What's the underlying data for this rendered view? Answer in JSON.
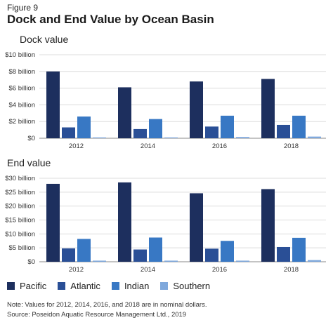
{
  "figure_label": "Figure 9",
  "title": "Dock and End Value by Ocean Basin",
  "legend": [
    {
      "name": "Pacific",
      "color": "#1d2f5e"
    },
    {
      "name": "Atlantic",
      "color": "#2a4f96"
    },
    {
      "name": "Indian",
      "color": "#3878c4"
    },
    {
      "name": "Southern",
      "color": "#7fa8dc"
    }
  ],
  "chart_data": [
    {
      "type": "bar",
      "title": "Dock value",
      "categories": [
        "2012",
        "2014",
        "2016",
        "2018"
      ],
      "yticks": [
        "$0",
        "$2 billion",
        "$4 billion",
        "$6 billion",
        "$8 billion",
        "$10 billion"
      ],
      "ylim": [
        0,
        10
      ],
      "series": [
        {
          "name": "Pacific",
          "values": [
            8.0,
            6.1,
            6.8,
            7.1
          ]
        },
        {
          "name": "Atlantic",
          "values": [
            1.3,
            1.1,
            1.4,
            1.6
          ]
        },
        {
          "name": "Indian",
          "values": [
            2.6,
            2.3,
            2.7,
            2.7
          ]
        },
        {
          "name": "Southern",
          "values": [
            0.1,
            0.1,
            0.15,
            0.2
          ]
        }
      ]
    },
    {
      "type": "bar",
      "title": "End value",
      "categories": [
        "2012",
        "2014",
        "2016",
        "2018"
      ],
      "yticks": [
        "$0",
        "$5 billion",
        "$10 billion",
        "$15 billion",
        "$20 billion",
        "$25 billion",
        "$30 billion"
      ],
      "ylim": [
        0,
        30
      ],
      "series": [
        {
          "name": "Pacific",
          "values": [
            28.0,
            28.5,
            24.6,
            26.1
          ]
        },
        {
          "name": "Atlantic",
          "values": [
            4.8,
            4.4,
            4.7,
            5.3
          ]
        },
        {
          "name": "Indian",
          "values": [
            8.2,
            8.7,
            7.5,
            8.6
          ]
        },
        {
          "name": "Southern",
          "values": [
            0.4,
            0.4,
            0.4,
            0.6
          ]
        }
      ]
    }
  ],
  "notes": {
    "note": "Note: Values for 2012, 2014, 2016, and 2018 are in nominal dollars.",
    "source": "Source: Poseidon Aquatic Resource Management Ltd., 2019"
  }
}
